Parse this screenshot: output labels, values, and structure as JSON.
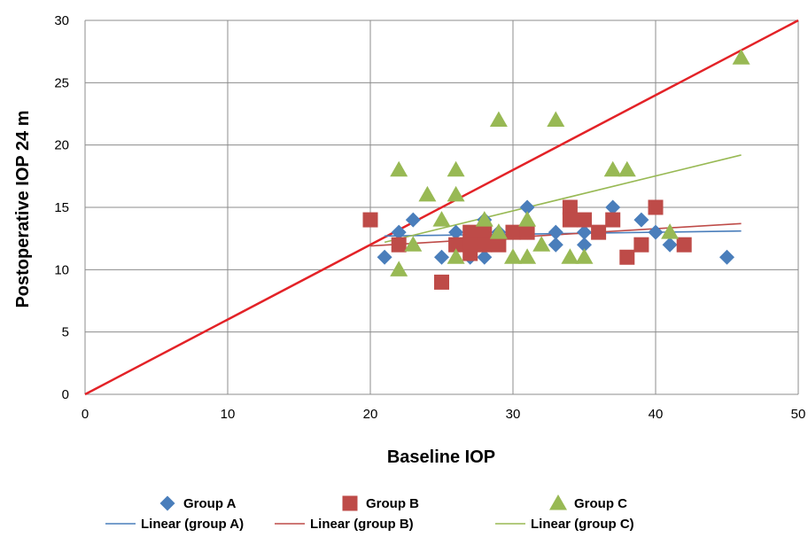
{
  "chart_data": {
    "type": "scatter",
    "xlabel": "Baseline IOP",
    "ylabel": "Postoperative IOP 24 m",
    "xlim": [
      0,
      50
    ],
    "ylim": [
      0,
      30
    ],
    "x_ticks": [
      0,
      10,
      20,
      30,
      40,
      50
    ],
    "y_ticks": [
      0,
      5,
      10,
      15,
      20,
      25,
      30
    ],
    "grid": true,
    "legend_position": "bottom",
    "series": [
      {
        "name": "Group A",
        "marker": "diamond",
        "color": "#4A7EBB",
        "points": [
          [
            21,
            11
          ],
          [
            22,
            13
          ],
          [
            23,
            14
          ],
          [
            25,
            11
          ],
          [
            26,
            13
          ],
          [
            27,
            12
          ],
          [
            27,
            11
          ],
          [
            28,
            14
          ],
          [
            28,
            11
          ],
          [
            29,
            13
          ],
          [
            30,
            13
          ],
          [
            31,
            15
          ],
          [
            31,
            13
          ],
          [
            33,
            13
          ],
          [
            33,
            12
          ],
          [
            35,
            13
          ],
          [
            35,
            12
          ],
          [
            37,
            15
          ],
          [
            39,
            14
          ],
          [
            40,
            13
          ],
          [
            41,
            12
          ],
          [
            45,
            11
          ]
        ]
      },
      {
        "name": "Group B",
        "marker": "square",
        "color": "#BE4B48",
        "points": [
          [
            20,
            14
          ],
          [
            22,
            12
          ],
          [
            25,
            9
          ],
          [
            26,
            12
          ],
          [
            27,
            13
          ],
          [
            27,
            12
          ],
          [
            27,
            11.3
          ],
          [
            28,
            13
          ],
          [
            28,
            12
          ],
          [
            29,
            12
          ],
          [
            30,
            13
          ],
          [
            31,
            13
          ],
          [
            34,
            15
          ],
          [
            34,
            14
          ],
          [
            35,
            14
          ],
          [
            36,
            13
          ],
          [
            37,
            14
          ],
          [
            38,
            11
          ],
          [
            39,
            12
          ],
          [
            40,
            15
          ],
          [
            42,
            12
          ]
        ]
      },
      {
        "name": "Group C",
        "marker": "triangle",
        "color": "#98B954",
        "points": [
          [
            22,
            18
          ],
          [
            22,
            10
          ],
          [
            23,
            12
          ],
          [
            24,
            16
          ],
          [
            25,
            14
          ],
          [
            26,
            18
          ],
          [
            26,
            16
          ],
          [
            26,
            11
          ],
          [
            28,
            14
          ],
          [
            29,
            22
          ],
          [
            29,
            13
          ],
          [
            30,
            11
          ],
          [
            31,
            14
          ],
          [
            31,
            11
          ],
          [
            32,
            12
          ],
          [
            33,
            22
          ],
          [
            34,
            11
          ],
          [
            35,
            11
          ],
          [
            37,
            18
          ],
          [
            38,
            18
          ],
          [
            41,
            13
          ],
          [
            46,
            27
          ]
        ]
      }
    ],
    "trendlines": [
      {
        "name": "Linear (group A)",
        "color": "#4A7EBB",
        "x": [
          21,
          46
        ],
        "y": [
          12.7,
          13.1
        ]
      },
      {
        "name": "Linear (group B)",
        "color": "#BE4B48",
        "x": [
          20,
          46
        ],
        "y": [
          11.9,
          13.7
        ]
      },
      {
        "name": "Linear (group C)",
        "color": "#98B954",
        "x": [
          21,
          46
        ],
        "y": [
          12.2,
          19.2
        ]
      }
    ],
    "reference_line": {
      "color": "#E32227",
      "x": [
        0,
        50
      ],
      "y": [
        0,
        30
      ]
    }
  }
}
